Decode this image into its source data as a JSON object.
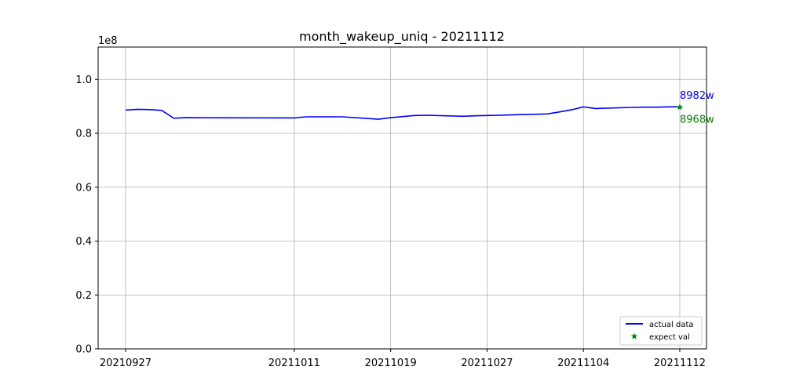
{
  "chart_data": {
    "type": "line",
    "title": "month_wakeup_uniq - 20211112",
    "xlabel": "",
    "ylabel": "",
    "y_offset_label": "1e8",
    "x_tick_labels": [
      "20210927",
      "20211011",
      "20211019",
      "20211027",
      "20211104",
      "20211112"
    ],
    "y_tick_labels": [
      "0.0",
      "0.2",
      "0.4",
      "0.6",
      "0.8",
      "1.0"
    ],
    "ylim": [
      0,
      1.12
    ],
    "grid": true,
    "legend_position": "lower-right",
    "series": [
      {
        "name": "actual data",
        "color": "#0000ff",
        "x": [
          "20210927",
          "20210928",
          "20210929",
          "20210930",
          "20211001",
          "20211002",
          "20211011",
          "20211012",
          "20211013",
          "20211014",
          "20211015",
          "20211018",
          "20211019",
          "20211020",
          "20211021",
          "20211022",
          "20211025",
          "20211026",
          "20211027",
          "20211028",
          "20211029",
          "20211101",
          "20211102",
          "20211103",
          "20211104",
          "20211105",
          "20211108",
          "20211109",
          "20211110",
          "20211111",
          "20211112"
        ],
        "values": [
          0.886,
          0.889,
          0.888,
          0.885,
          0.856,
          0.858,
          0.857,
          0.861,
          0.861,
          0.861,
          0.861,
          0.852,
          0.858,
          0.862,
          0.866,
          0.867,
          0.863,
          0.865,
          0.866,
          0.867,
          0.868,
          0.872,
          0.879,
          0.887,
          0.898,
          0.892,
          0.896,
          0.897,
          0.897,
          0.898,
          0.8982
        ]
      },
      {
        "name": "expect val",
        "color": "#008000",
        "marker": "star",
        "x": [
          "20211112"
        ],
        "values": [
          0.8968
        ]
      }
    ],
    "annotations": [
      {
        "text": "8982w",
        "color": "#0000ff"
      },
      {
        "text": "8968w",
        "color": "#008000"
      }
    ]
  }
}
